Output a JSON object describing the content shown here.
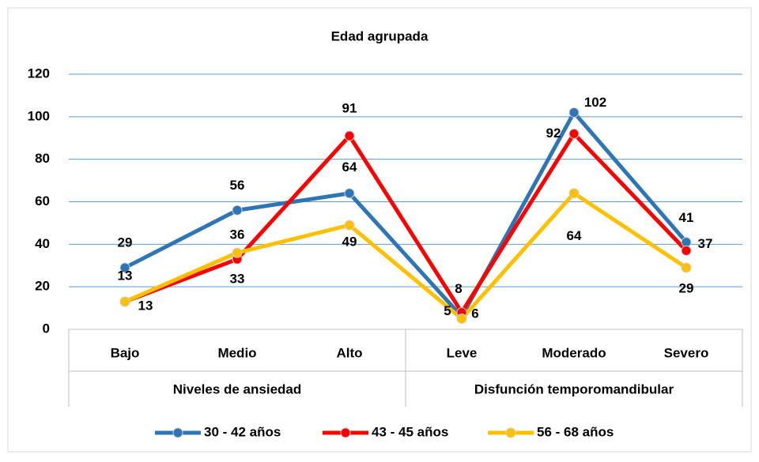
{
  "chart_data": {
    "type": "line",
    "title": "Edad agrupada",
    "categories": [
      "Bajo",
      "Medio",
      "Alto",
      "Leve",
      "Moderado",
      "Severo"
    ],
    "groups": [
      {
        "name": "Niveles de ansiedad",
        "span": 3
      },
      {
        "name": "Disfunción temporomandibular",
        "span": 3
      }
    ],
    "series": [
      {
        "name": "30 - 42 años",
        "color": "#2e75b6",
        "values": [
          29,
          56,
          64,
          6,
          102,
          41
        ]
      },
      {
        "name": "43 - 45 años",
        "color": "#ff0000",
        "values": [
          13,
          33,
          91,
          8,
          92,
          37
        ]
      },
      {
        "name": "56 - 68 años",
        "color": "#ffc000",
        "values": [
          13,
          36,
          49,
          5,
          64,
          29
        ]
      }
    ],
    "ylim": [
      0,
      120
    ],
    "yticks": [
      0,
      20,
      40,
      60,
      80,
      100,
      120
    ],
    "grid": true,
    "legend": "bottom"
  }
}
